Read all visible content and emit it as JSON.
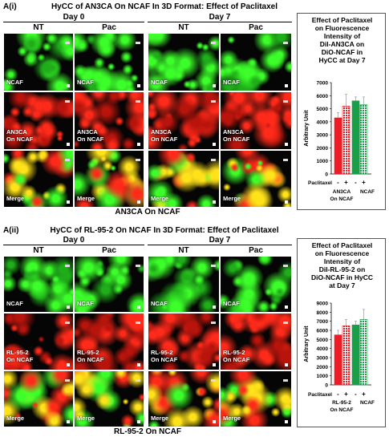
{
  "panels": [
    {
      "label": "A(i)",
      "title": "HyCC of AN3CA On NCAF In 3D Format: Effect of Paclitaxel",
      "day0": "Day 0",
      "day7": "Day 7",
      "cond_nt": "NT",
      "cond_pac": "Pac",
      "row_captions": [
        [
          "NCAF"
        ],
        [
          "AN3CA",
          "On NCAF"
        ],
        [
          "Merge"
        ]
      ],
      "bottom_caption": "AN3CA On NCAF",
      "chart_title": [
        "Effect of Paclitaxel",
        "on Fluorescence",
        "Intensity of",
        "DiI-AN3CA on",
        "DiO-NCAF in",
        "HyCC at Day 7"
      ]
    },
    {
      "label": "A(ii)",
      "title": "HyCC of RL-95-2 On NCAF In 3D Format: Effect of Paclitaxel",
      "day0": "Day 0",
      "day7": "Day 7",
      "cond_nt": "NT",
      "cond_pac": "Pac",
      "row_captions": [
        [
          "NCAF"
        ],
        [
          "RL-95-2",
          "On NCAF"
        ],
        [
          "Merge"
        ]
      ],
      "bottom_caption": "RL-95-2 On NCAF",
      "chart_title": [
        "Effect of Paclitaxel",
        "on Fluorescence",
        "Intensity of",
        "DiI-RL-95-2 on",
        "DiO-NCAF in HyCC",
        "at Day 7"
      ]
    }
  ],
  "chart_data": [
    {
      "type": "bar",
      "ylabel": "Arbitrary Unit",
      "ylim": [
        0,
        7000
      ],
      "yticks": [
        "0",
        "1000",
        "2000",
        "3000",
        "4000",
        "5000",
        "6000",
        "7000"
      ],
      "paclitaxel_label": "Paclitaxel",
      "signs": [
        "-",
        "+",
        "-",
        "+"
      ],
      "groups": [
        "AN3CA On NCAF",
        "NCAF"
      ],
      "group_label_lines": [
        [
          "AN3CA",
          "On NCAF"
        ],
        [
          "NCAF"
        ]
      ],
      "values": [
        4300,
        5200,
        5600,
        5300
      ],
      "errors": [
        400,
        900,
        300,
        600
      ],
      "colors": [
        "#ee1c24",
        "#ee1c24",
        "#1a9e4a",
        "#1a9e4a"
      ],
      "hatched": [
        false,
        true,
        false,
        true
      ]
    },
    {
      "type": "bar",
      "ylabel": "Arbitrary Unit",
      "ylim": [
        0,
        9000
      ],
      "yticks": [
        "0",
        "1000",
        "2000",
        "3000",
        "4000",
        "5000",
        "6000",
        "7000",
        "8000",
        "9000"
      ],
      "paclitaxel_label": "Paclitaxel",
      "signs": [
        "-",
        "+",
        "-",
        "+"
      ],
      "groups": [
        "RL-95-2 On NCAF",
        "NCAF"
      ],
      "group_label_lines": [
        [
          "RL-95-2",
          "On NCAF"
        ],
        [
          "NCAF"
        ]
      ],
      "values": [
        5500,
        6500,
        6600,
        7200
      ],
      "errors": [
        500,
        700,
        400,
        1100
      ],
      "colors": [
        "#ee1c24",
        "#ee1c24",
        "#1a9e4a",
        "#1a9e4a"
      ],
      "hatched": [
        false,
        true,
        false,
        true
      ]
    }
  ]
}
